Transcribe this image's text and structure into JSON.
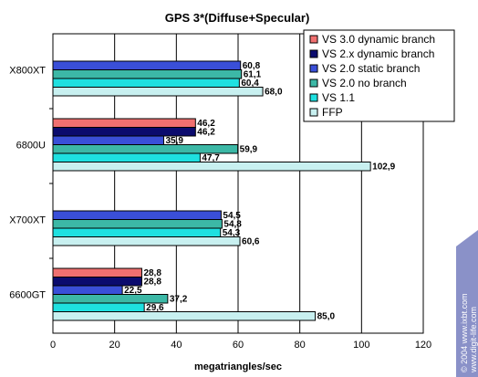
{
  "chart_data": {
    "type": "bar",
    "orientation": "horizontal",
    "title": "GPS 3*(Diffuse+Specular)",
    "xlabel": "megatriangles/sec",
    "xlim": [
      0,
      120
    ],
    "xticks": [
      "0",
      "20",
      "40",
      "60",
      "80",
      "100",
      "120"
    ],
    "grid": true,
    "legend_position": "top-right",
    "categories": [
      "X800XT",
      "6800U",
      "X700XT",
      "6600GT"
    ],
    "series": [
      {
        "name": "VS 3.0 dynamic branch",
        "color": "#f07070",
        "values": [
          null,
          46.2,
          null,
          28.8
        ],
        "labels": [
          "",
          "46,2",
          "",
          "28,8"
        ]
      },
      {
        "name": "VS 2.x dynamic branch",
        "color": "#0b0b6e",
        "values": [
          null,
          46.2,
          null,
          28.8
        ],
        "labels": [
          "",
          "46,2",
          "",
          "28,8"
        ]
      },
      {
        "name": "VS 2.0 static branch",
        "color": "#3a4fd8",
        "values": [
          60.8,
          35.9,
          54.5,
          22.5
        ],
        "labels": [
          "60,8",
          "35,9",
          "54,5",
          "22,5"
        ]
      },
      {
        "name": "VS 2.0 no branch",
        "color": "#3cb8a6",
        "values": [
          61.1,
          59.9,
          54.8,
          37.2
        ],
        "labels": [
          "61,1",
          "59,9",
          "54,8",
          "37,2"
        ]
      },
      {
        "name": "VS 1.1",
        "color": "#1ee0e0",
        "values": [
          60.4,
          47.7,
          54.3,
          29.6
        ],
        "labels": [
          "60,4",
          "47,7",
          "54,3",
          "29,6"
        ]
      },
      {
        "name": "FFP",
        "color": "#c8f0f0",
        "values": [
          68.0,
          102.9,
          60.6,
          85.0
        ],
        "labels": [
          "68,0",
          "102,9",
          "60,6",
          "85,0"
        ]
      }
    ]
  },
  "watermark": {
    "line1": "© 2004 www.ixbt.com",
    "line2": "www.digit-life.com"
  }
}
